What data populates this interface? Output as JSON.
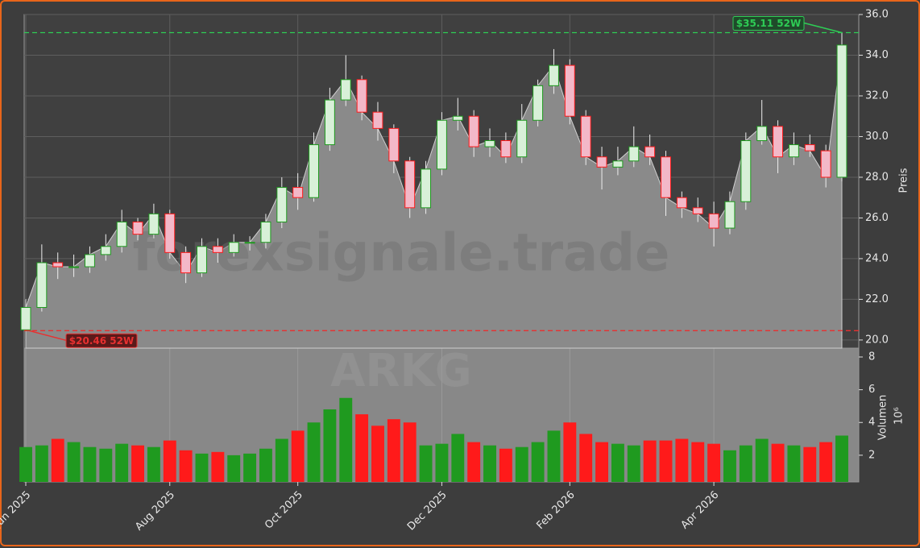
{
  "chart_data": {
    "type": "candlestick",
    "watermark": "forexsignale.trade",
    "watermark_symbol": "ARKG",
    "ylabel": "Preis",
    "y2label": "Volumen",
    "y2_offset_label": "10⁶",
    "categories": [
      "Jun 2025",
      null,
      null,
      null,
      null,
      null,
      null,
      null,
      null,
      "Aug 2025",
      null,
      null,
      null,
      null,
      null,
      null,
      null,
      "Oct 2025",
      null,
      null,
      null,
      null,
      null,
      null,
      null,
      null,
      "Dec 2025",
      null,
      null,
      null,
      null,
      null,
      null,
      null,
      "Feb 2026",
      null,
      null,
      null,
      null,
      null,
      null,
      null,
      null,
      "Apr 2026",
      null,
      null,
      null,
      null,
      null,
      null,
      null,
      null
    ],
    "open": [
      20.5,
      21.6,
      23.8,
      23.6,
      23.6,
      24.2,
      24.6,
      25.8,
      25.2,
      26.2,
      24.3,
      23.3,
      24.6,
      24.3,
      24.8,
      24.8,
      25.8,
      27.5,
      27,
      29.6,
      31.8,
      32.8,
      31.2,
      30.4,
      28.8,
      26.5,
      28.4,
      30.8,
      31,
      29.5,
      29.8,
      29,
      30.8,
      32.5,
      33.5,
      31,
      29,
      28.5,
      28.8,
      29.5,
      29,
      27,
      26.5,
      26.2,
      25.5,
      26.8,
      29.8,
      30.5,
      29,
      29.6,
      29.3,
      28
    ],
    "high": [
      22.0,
      24.7,
      24.3,
      24.2,
      24.6,
      25.2,
      26.4,
      26.0,
      26.7,
      26.4,
      24.6,
      25.0,
      25.0,
      25.2,
      25.1,
      26.2,
      28.0,
      28.2,
      30.2,
      32.4,
      34.0,
      33.0,
      31.7,
      30.6,
      29.0,
      28.8,
      31.2,
      31.9,
      31.3,
      30.4,
      30.2,
      31.6,
      32.8,
      34.3,
      33.8,
      31.3,
      29.5,
      29.5,
      30.5,
      30.1,
      29.3,
      27.3,
      27.0,
      26.8,
      27.3,
      30.2,
      31.8,
      30.8,
      30.2,
      30.1,
      29.6,
      35.11
    ],
    "low": [
      20.46,
      21.4,
      23.0,
      23.1,
      23.3,
      23.9,
      24.3,
      24.9,
      25.0,
      24.0,
      22.8,
      23.1,
      23.8,
      24.1,
      24.4,
      24.5,
      25.5,
      26.4,
      26.8,
      29.3,
      31.5,
      30.8,
      29.8,
      28.2,
      26.0,
      26.2,
      28.1,
      30.3,
      29.0,
      29.0,
      28.7,
      28.7,
      30.5,
      32.1,
      30.6,
      28.6,
      27.4,
      28.1,
      28.5,
      28.6,
      26.1,
      26.0,
      25.8,
      24.6,
      25.2,
      26.4,
      29.6,
      28.2,
      28.6,
      29.0,
      27.5,
      27.8
    ],
    "close": [
      21.6,
      23.8,
      23.6,
      23.6,
      24.2,
      24.6,
      25.8,
      25.2,
      26.2,
      24.3,
      23.3,
      24.6,
      24.3,
      24.8,
      24.8,
      25.8,
      27.5,
      27,
      29.6,
      31.8,
      32.8,
      31.2,
      30.4,
      28.8,
      26.5,
      28.4,
      30.8,
      31,
      29.5,
      29.8,
      29,
      30.8,
      32.5,
      33.5,
      31,
      29,
      28.5,
      28.8,
      29.5,
      29,
      27,
      26.5,
      26.2,
      25.5,
      26.8,
      29.8,
      30.5,
      29,
      29.6,
      29.3,
      28,
      34.5
    ],
    "volume": [
      2.5,
      2.6,
      3.0,
      2.8,
      2.5,
      2.4,
      2.7,
      2.6,
      2.5,
      2.9,
      2.3,
      2.1,
      2.2,
      2.0,
      2.1,
      2.4,
      3.0,
      3.5,
      4.0,
      4.8,
      5.5,
      4.5,
      3.8,
      4.2,
      4.0,
      2.6,
      2.7,
      3.3,
      2.8,
      2.6,
      2.4,
      2.5,
      2.8,
      3.5,
      4.0,
      3.3,
      2.8,
      2.7,
      2.6,
      2.9,
      2.9,
      3.0,
      2.8,
      2.7,
      2.3,
      2.6,
      3.0,
      2.7,
      2.6,
      2.5,
      2.8,
      3.2
    ],
    "up_color": "#1f9a1f",
    "down_color": "#ff1a1a",
    "area_color": "#8a8a8a",
    "ylim": [
      19.6,
      36
    ],
    "yticks": [
      {
        "value": 20,
        "label": "20.0"
      },
      {
        "value": 22,
        "label": "22.0"
      },
      {
        "value": 24,
        "label": "24.0"
      },
      {
        "value": 26,
        "label": "26.0"
      },
      {
        "value": 28,
        "label": "28.0"
      },
      {
        "value": 30,
        "label": "30.0"
      },
      {
        "value": 32,
        "label": "32.0"
      },
      {
        "value": 34,
        "label": "34.0"
      },
      {
        "value": 36,
        "label": "36.0"
      }
    ],
    "y2lim": [
      0.37,
      8.54
    ],
    "y2ticks": [
      2,
      4,
      6,
      8
    ],
    "grid": true,
    "annotations": [
      {
        "text": "$35.11 52W",
        "value": 35.11,
        "color": "#2ecc55"
      },
      {
        "text": "$20.46 52W",
        "value": 20.46,
        "color": "#e83030"
      }
    ]
  }
}
